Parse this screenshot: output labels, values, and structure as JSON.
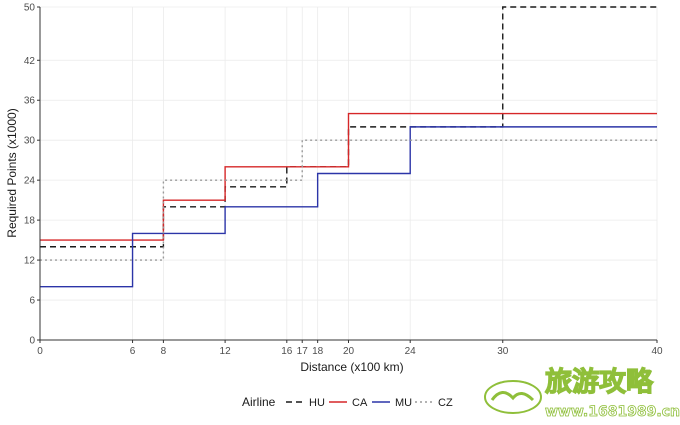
{
  "chart_data": {
    "type": "line",
    "step": true,
    "title": "",
    "xlabel": "Distance (x100 km)",
    "ylabel": "Required Points (x1000)",
    "xlim": [
      0,
      40
    ],
    "ylim": [
      0,
      50
    ],
    "x_ticks": [
      0,
      6,
      8,
      12,
      16,
      17,
      18,
      20,
      24,
      30,
      40
    ],
    "y_ticks": [
      0,
      6,
      12,
      18,
      24,
      30,
      36,
      42,
      50
    ],
    "grid": true,
    "legend": {
      "title": "Airline",
      "position": "bottom"
    },
    "series": [
      {
        "name": "HU",
        "color": "#1a1a1a",
        "dash": "dashed",
        "steps": [
          {
            "x": 0,
            "y": 14
          },
          {
            "x": 8,
            "y": 20
          },
          {
            "x": 12,
            "y": 23
          },
          {
            "x": 16,
            "y": 26
          },
          {
            "x": 20,
            "y": 32
          },
          {
            "x": 30,
            "y": 50
          },
          {
            "x": 40,
            "y": 50
          }
        ]
      },
      {
        "name": "CA",
        "color": "#d62728",
        "dash": "solid",
        "steps": [
          {
            "x": 0,
            "y": 15
          },
          {
            "x": 8,
            "y": 21
          },
          {
            "x": 12,
            "y": 26
          },
          {
            "x": 20,
            "y": 34
          },
          {
            "x": 40,
            "y": 34
          }
        ]
      },
      {
        "name": "MU",
        "color": "#2c35a8",
        "dash": "solid",
        "steps": [
          {
            "x": 0,
            "y": 8
          },
          {
            "x": 6,
            "y": 16
          },
          {
            "x": 12,
            "y": 20
          },
          {
            "x": 18,
            "y": 25
          },
          {
            "x": 24,
            "y": 32
          },
          {
            "x": 40,
            "y": 32
          }
        ]
      },
      {
        "name": "CZ",
        "color": "#9a9a9a",
        "dash": "dotted",
        "steps": [
          {
            "x": 0,
            "y": 12
          },
          {
            "x": 8,
            "y": 24
          },
          {
            "x": 17,
            "y": 30
          },
          {
            "x": 40,
            "y": 30
          }
        ]
      }
    ]
  },
  "watermark": {
    "brand": "旅游攻略",
    "url": "www.1681989.cn"
  },
  "colors": {
    "grid": "#ebebeb",
    "axis": "#333333",
    "watermark_green": "#8fbf3a"
  }
}
